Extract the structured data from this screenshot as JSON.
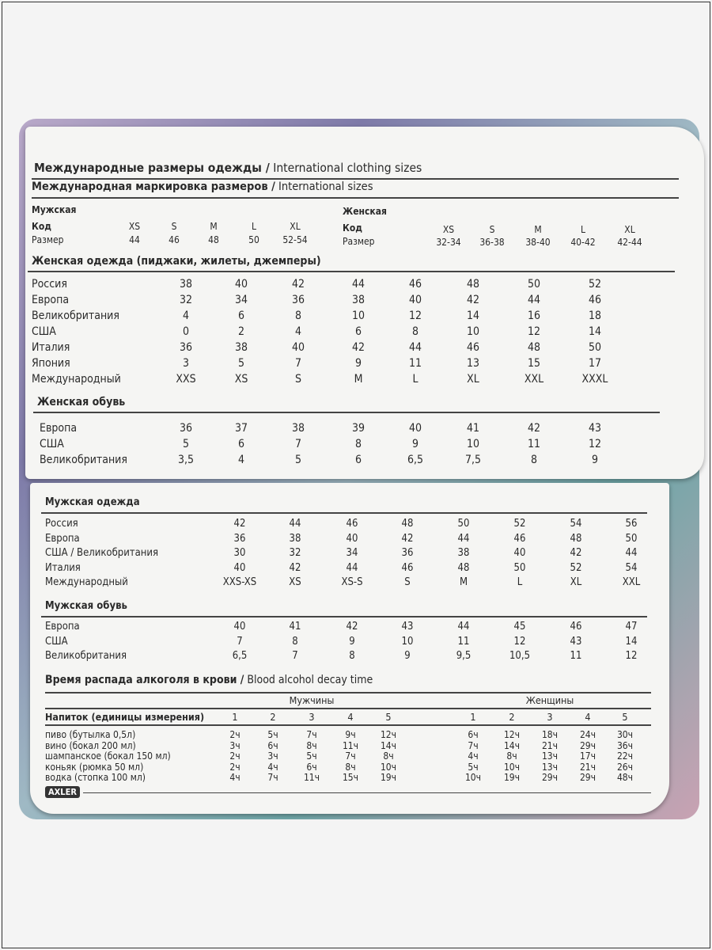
{
  "title": {
    "ru": "Международные размеры одежды /",
    "en": " International clothing sizes"
  },
  "intl": {
    "ru": "Международная маркировка размеров /",
    "en": " International sizes",
    "men": {
      "label": "Мужская",
      "code_label": "Код",
      "size_label": "Размер",
      "codes": [
        "XS",
        "S",
        "M",
        "L",
        "XL"
      ],
      "sizes": [
        "44",
        "46",
        "48",
        "50",
        "52-54"
      ]
    },
    "women": {
      "label": "Женская",
      "code_label": "Код",
      "size_label": "Размер",
      "codes": [
        "XS",
        "S",
        "M",
        "L",
        "XL"
      ],
      "sizes": [
        "32-34",
        "36-38",
        "38-40",
        "40-42",
        "42-44"
      ]
    }
  },
  "women_clothing": {
    "title": "Женская одежда (пиджаки, жилеты, джемперы)",
    "rows": [
      {
        "label": "Россия",
        "values": [
          "38",
          "40",
          "42",
          "44",
          "46",
          "48",
          "50",
          "52"
        ]
      },
      {
        "label": "Европа",
        "values": [
          "32",
          "34",
          "36",
          "38",
          "40",
          "42",
          "44",
          "46"
        ]
      },
      {
        "label": "Великобритания",
        "values": [
          "4",
          "6",
          "8",
          "10",
          "12",
          "14",
          "16",
          "18"
        ]
      },
      {
        "label": "США",
        "values": [
          "0",
          "2",
          "4",
          "6",
          "8",
          "10",
          "12",
          "14"
        ]
      },
      {
        "label": "Италия",
        "values": [
          "36",
          "38",
          "40",
          "42",
          "44",
          "46",
          "48",
          "50"
        ]
      },
      {
        "label": "Япония",
        "values": [
          "3",
          "5",
          "7",
          "9",
          "11",
          "13",
          "15",
          "17"
        ]
      },
      {
        "label": "Международный",
        "values": [
          "XXS",
          "XS",
          "S",
          "M",
          "L",
          "XL",
          "XXL",
          "XXXL"
        ]
      }
    ]
  },
  "women_shoes": {
    "title": "Женская обувь",
    "rows": [
      {
        "label": "Европа",
        "values": [
          "36",
          "37",
          "38",
          "39",
          "40",
          "41",
          "42",
          "43"
        ]
      },
      {
        "label": "США",
        "values": [
          "5",
          "6",
          "7",
          "8",
          "9",
          "10",
          "11",
          "12"
        ]
      },
      {
        "label": "Великобритания",
        "values": [
          "3,5",
          "4",
          "5",
          "6",
          "6,5",
          "7,5",
          "8",
          "9"
        ]
      }
    ]
  },
  "men_clothing": {
    "title": "Мужская одежда",
    "rows": [
      {
        "label": "Россия",
        "values": [
          "42",
          "44",
          "46",
          "48",
          "50",
          "52",
          "54",
          "56"
        ]
      },
      {
        "label": "Европа",
        "values": [
          "36",
          "38",
          "40",
          "42",
          "44",
          "46",
          "48",
          "50"
        ]
      },
      {
        "label": "США / Великобритания",
        "values": [
          "30",
          "32",
          "34",
          "36",
          "38",
          "40",
          "42",
          "44"
        ]
      },
      {
        "label": "Италия",
        "values": [
          "40",
          "42",
          "44",
          "46",
          "48",
          "50",
          "52",
          "54"
        ]
      },
      {
        "label": "Международный",
        "values": [
          "XXS-XS",
          "XS",
          "XS-S",
          "S",
          "M",
          "L",
          "XL",
          "XXL"
        ]
      }
    ]
  },
  "men_shoes": {
    "title": "Мужская обувь",
    "rows": [
      {
        "label": "Европа",
        "values": [
          "40",
          "41",
          "42",
          "43",
          "44",
          "45",
          "46",
          "47"
        ]
      },
      {
        "label": "США",
        "values": [
          "7",
          "8",
          "9",
          "10",
          "11",
          "12",
          "43",
          "14"
        ]
      },
      {
        "label": "Великобритания",
        "values": [
          "6,5",
          "7",
          "8",
          "9",
          "9,5",
          "10,5",
          "11",
          "12"
        ]
      }
    ]
  },
  "alcohol": {
    "ru": "Время распада алкоголя в крови /",
    "en": " Blood alcohol decay time",
    "men_label": "Мужчины",
    "women_label": "Женщины",
    "drink_header": "Напиток (единицы измерения)",
    "units": [
      "1",
      "2",
      "3",
      "4",
      "5",
      "1",
      "2",
      "3",
      "4",
      "5"
    ],
    "rows": [
      {
        "label": "пиво (бутылка 0,5л)",
        "values": [
          "2ч",
          "5ч",
          "7ч",
          "9ч",
          "12ч",
          "6ч",
          "12ч",
          "18ч",
          "24ч",
          "30ч"
        ]
      },
      {
        "label": "вино (бокал 200 мл)",
        "values": [
          "3ч",
          "6ч",
          "8ч",
          "11ч",
          "14ч",
          "7ч",
          "14ч",
          "21ч",
          "29ч",
          "36ч"
        ]
      },
      {
        "label": "шампанское (бокал 150 мл)",
        "values": [
          "2ч",
          "3ч",
          "5ч",
          "7ч",
          "8ч",
          "4ч",
          "8ч",
          "13ч",
          "17ч",
          "22ч"
        ]
      },
      {
        "label": "коньяк (рюмка 50 мл)",
        "values": [
          "2ч",
          "4ч",
          "6ч",
          "8ч",
          "10ч",
          "5ч",
          "10ч",
          "13ч",
          "21ч",
          "26ч"
        ]
      },
      {
        "label": "водка (стопка 100 мл)",
        "values": [
          "4ч",
          "7ч",
          "11ч",
          "15ч",
          "19ч",
          "10ч",
          "19ч",
          "29ч",
          "29ч",
          "48ч"
        ]
      }
    ]
  },
  "brand": "AXLER"
}
